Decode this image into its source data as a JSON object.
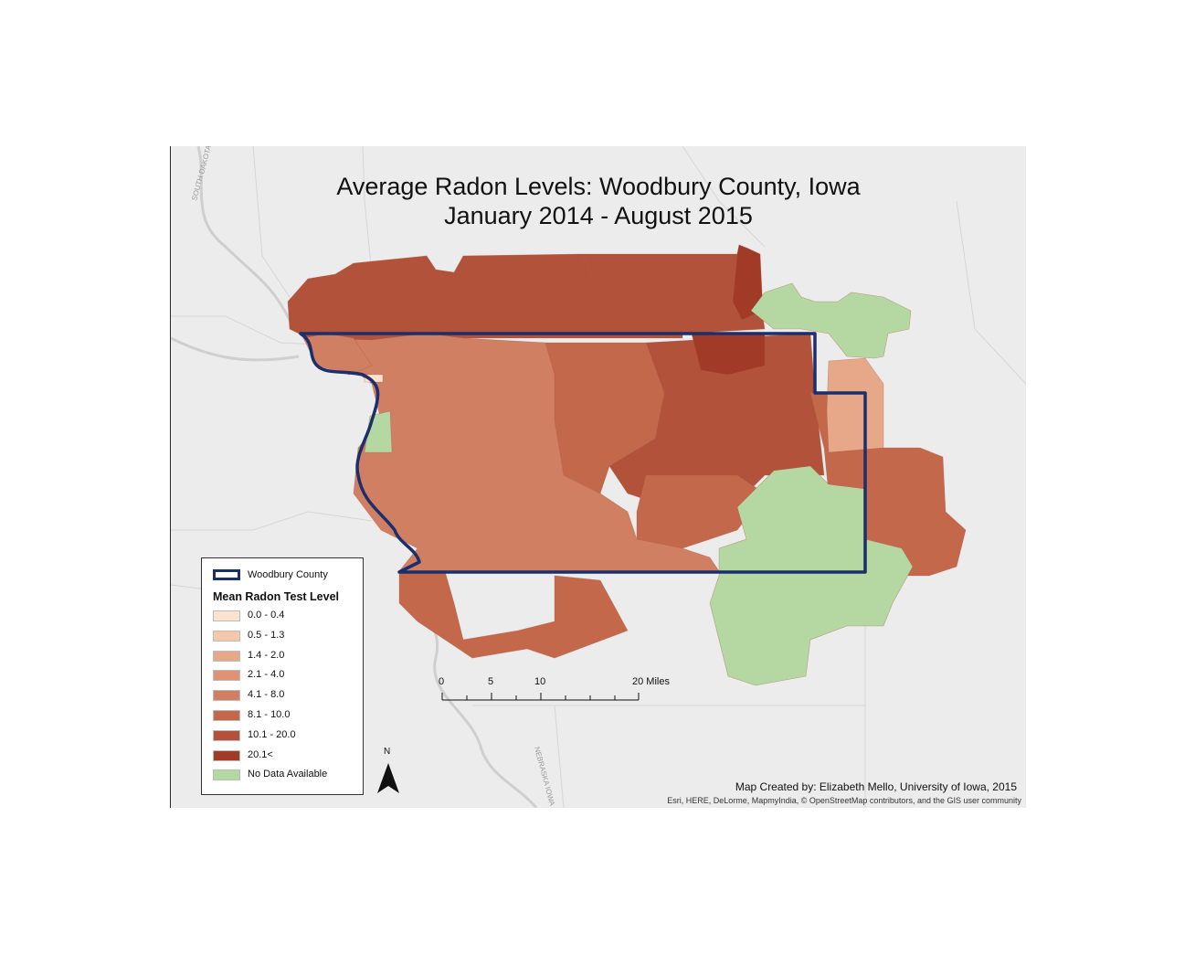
{
  "title_line1": "Average Radon Levels: Woodbury County, Iowa",
  "title_line2": "January 2014 - August 2015",
  "legend": {
    "county_label": "Woodbury County",
    "heading": "Mean Radon Test Level",
    "classes": [
      {
        "label": "0.0 - 0.4",
        "color": "#fbe3d0"
      },
      {
        "label": "0.5 - 1.3",
        "color": "#f4c6aa"
      },
      {
        "label": "1.4 - 2.0",
        "color": "#e7a889"
      },
      {
        "label": "2.1 - 4.0",
        "color": "#de9474"
      },
      {
        "label": "4.1 - 8.0",
        "color": "#d17f63"
      },
      {
        "label": "8.1 - 10.0",
        "color": "#c4684c"
      },
      {
        "label": "10.1 - 20.0",
        "color": "#b3523a"
      },
      {
        "label": "20.1<",
        "color": "#a13b27"
      },
      {
        "label": "No Data Available",
        "color": "#b5d7a1"
      }
    ]
  },
  "scale_bar": {
    "labels": [
      "0",
      "5",
      "10",
      "20 Miles"
    ]
  },
  "north_arrow": {
    "label": "N"
  },
  "credit": "Map Created by: Elizabeth Mello, University of Iowa, 2015",
  "attribution": "Esri, HERE, DeLorme, MapmyIndia, © OpenStreetMap contributors, and the GIS user community",
  "colors": {
    "county_outline": "#1a2f6b",
    "basemap": "#ececec",
    "river": "#c8c8c8"
  }
}
